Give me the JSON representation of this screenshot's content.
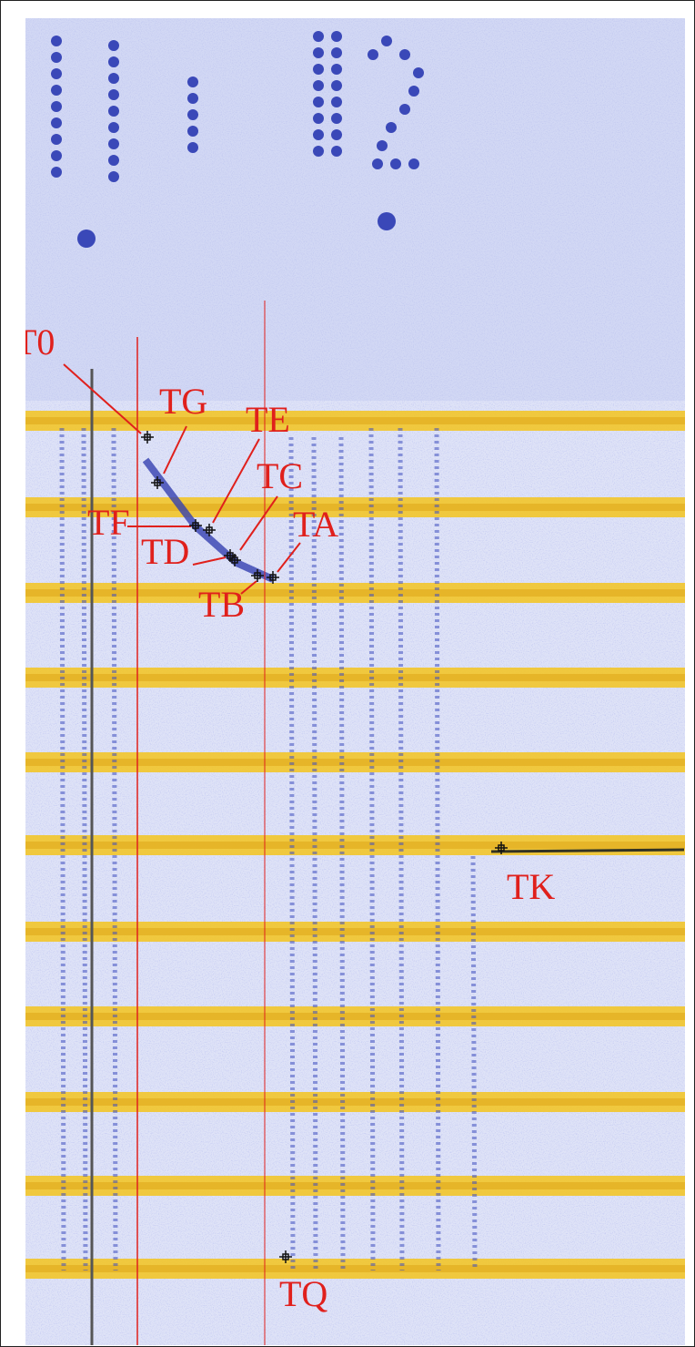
{
  "labels": [
    {
      "text": "T0"
    },
    {
      "text": "TG"
    },
    {
      "text": "TE"
    },
    {
      "text": "TC"
    },
    {
      "text": "TA"
    },
    {
      "text": "TF"
    },
    {
      "text": "TD"
    },
    {
      "text": "TB"
    },
    {
      "text": "TK"
    },
    {
      "text": "TQ"
    }
  ]
}
